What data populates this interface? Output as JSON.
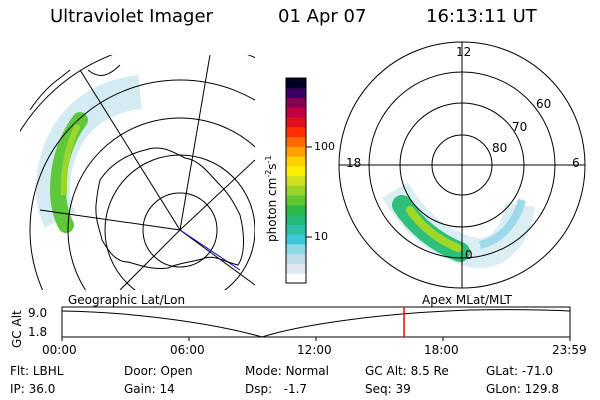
{
  "header": {
    "instrument": "Ultraviolet Imager",
    "date": "01 Apr 07",
    "time": "16:13:11 UT"
  },
  "colorbar": {
    "ticks": [
      "100",
      "10"
    ],
    "unit_main": "photon cm",
    "unit_exp1": "-2",
    "unit_s": "s",
    "unit_exp2": "-1",
    "colors": [
      "#ffffff",
      "#dfe8ef",
      "#c0dce8",
      "#8fd6e6",
      "#3cc8d8",
      "#2fc0a8",
      "#22b878",
      "#2db84a",
      "#5ec832",
      "#96d42a",
      "#cce020",
      "#fff000",
      "#ffd000",
      "#ffa000",
      "#ff6a00",
      "#ff3000",
      "#e01020",
      "#c00040",
      "#8a0050",
      "#3a0060",
      "#000020"
    ]
  },
  "geo_map": {
    "label": "Geographic Lat/Lon"
  },
  "polar_map": {
    "label": "Apex MLat/MLT",
    "mlt_labels": [
      "12",
      "18",
      "6",
      "0"
    ],
    "lat_labels": [
      "60",
      "70",
      "80"
    ]
  },
  "timeline": {
    "ylabel": "GC Alt",
    "y_ticks": [
      "9.0",
      "1.8"
    ],
    "x_ticks": [
      "00:00",
      "06:00",
      "12:00",
      "18:00",
      "23:59"
    ],
    "marker_time": "16:13",
    "marker_color": "#ff0000"
  },
  "info": {
    "filter_label": "Flt:",
    "filter_value": "LBHL",
    "ip_label": "IP:",
    "ip_value": "36.0",
    "door_label": "Door:",
    "door_value": "Open",
    "gain_label": "Gain:",
    "gain_value": "14",
    "mode_label": "Mode:",
    "mode_value": "Normal",
    "dsp_label": "Dsp:",
    "dsp_value": "-1.7",
    "gcalt_label": "GC Alt:",
    "gcalt_value": "8.5 Re",
    "seq_label": "Seq:",
    "seq_value": "39",
    "glat_label": "GLat:",
    "glat_value": "-71.0",
    "glon_label": "GLon:",
    "glon_value": "129.8"
  }
}
